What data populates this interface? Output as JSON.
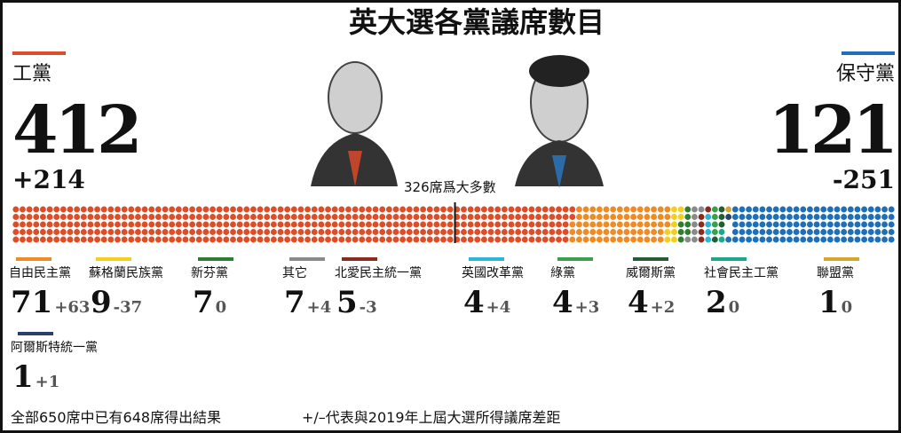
{
  "chart_data": {
    "type": "waffle",
    "title": "英大選各黨議席數目",
    "total": 650,
    "majority": 326,
    "majority_label": "326席爲大多數",
    "footnotes": [
      "全部650席中已有648席得出結果",
      "+/–代表與2019年上屆大選所得議席差距"
    ],
    "series": [
      {
        "name": "工黨",
        "color": "#dd4d27",
        "values": [
          412
        ],
        "change": "+214"
      },
      {
        "name": "自由民主黨",
        "color": "#f08a24",
        "values": [
          71
        ],
        "change": "+63"
      },
      {
        "name": "蘇格蘭民族黨",
        "color": "#f2cf1d",
        "values": [
          9
        ],
        "change": "-37"
      },
      {
        "name": "新芬黨",
        "color": "#2e7d32",
        "values": [
          7
        ],
        "change": "0"
      },
      {
        "name": "其它",
        "color": "#8a8a8a",
        "values": [
          7
        ],
        "change": "+4"
      },
      {
        "name": "北愛民主統一黨",
        "color": "#8b2b1f",
        "values": [
          5
        ],
        "change": "-3"
      },
      {
        "name": "英國改革黨",
        "color": "#2bb6d8",
        "values": [
          4
        ],
        "change": "+4"
      },
      {
        "name": "綠黨",
        "color": "#3aa04c",
        "values": [
          4
        ],
        "change": "+3"
      },
      {
        "name": "威爾斯黨",
        "color": "#245c34",
        "values": [
          4
        ],
        "change": "+2"
      },
      {
        "name": "社會民主工黨",
        "color": "#1aa88c",
        "values": [
          2
        ],
        "change": "0"
      },
      {
        "name": "聯盟黨",
        "color": "#d4a72c",
        "values": [
          1
        ],
        "change": "0"
      },
      {
        "name": "阿爾斯特統一黨",
        "color": "#2c3e6e",
        "values": [
          1
        ],
        "change": "+1"
      },
      {
        "name": "保守黨",
        "color": "#1f6fb8",
        "values": [
          121
        ],
        "change": "-251"
      }
    ]
  }
}
